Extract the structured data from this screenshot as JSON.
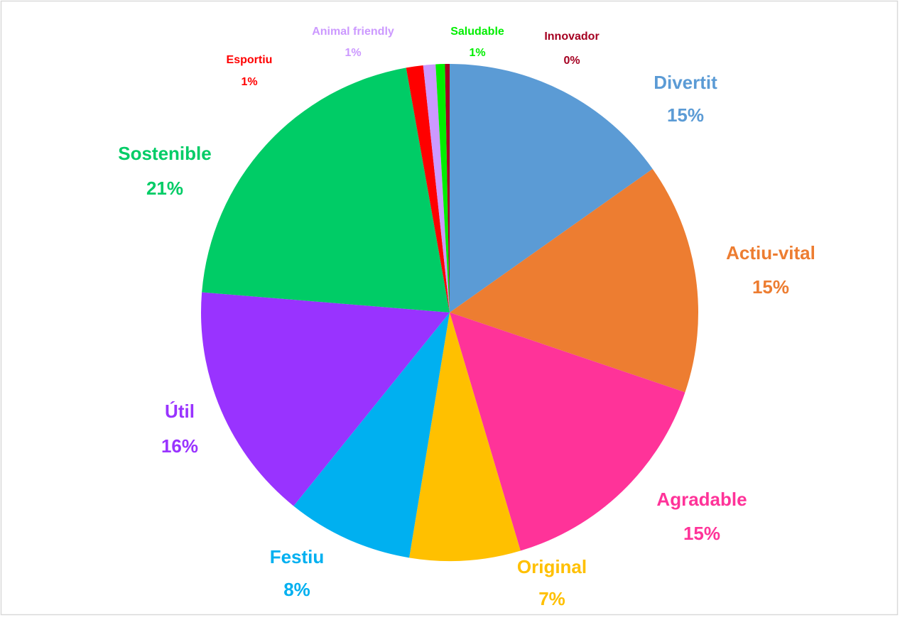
{
  "chart_data": {
    "type": "pie",
    "categories": [
      "Divertit",
      "Actiu-vital",
      "Agradable",
      "Original",
      "Festiu",
      "Útil",
      "Sostenible",
      "Esportiu",
      "Animal friendly",
      "Saludable",
      "Innovador"
    ],
    "values": [
      15.2,
      15.0,
      15.2,
      7.2,
      8.2,
      15.5,
      20.9,
      1.1,
      0.8,
      0.6,
      0.3
    ],
    "value_labels": [
      "15%",
      "15%",
      "15%",
      "7%",
      "8%",
      "16%",
      "21%",
      "1%",
      "1%",
      "1%",
      "0%"
    ],
    "colors": [
      "#5b9bd5",
      "#ed7d31",
      "#ff3399",
      "#ffc000",
      "#00b0f0",
      "#9933ff",
      "#00cc66",
      "#ff0000",
      "#cc99ff",
      "#00ee00",
      "#a50021"
    ]
  }
}
